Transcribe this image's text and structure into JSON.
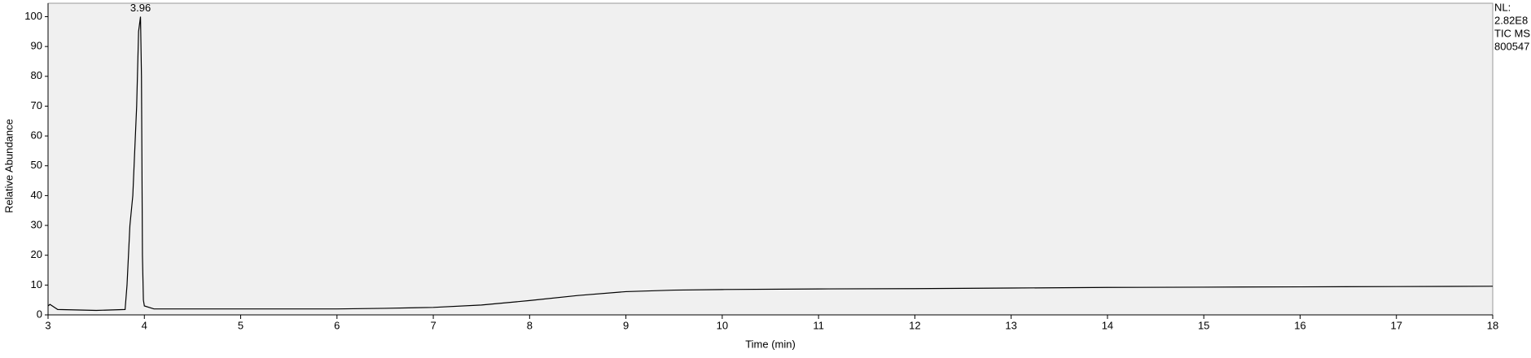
{
  "chart_data": {
    "type": "line",
    "xlabel": "Time (min)",
    "ylabel": "Relative Abundance",
    "info": [
      "NL:",
      "2.82E8",
      "TIC  MS",
      "800547"
    ],
    "annotations": [
      {
        "x": 3.96,
        "y": 100,
        "text": "3.96"
      }
    ],
    "xlim": [
      3,
      18
    ],
    "xticks": [
      3,
      4,
      5,
      6,
      7,
      8,
      9,
      10,
      11,
      12,
      13,
      14,
      15,
      16,
      17,
      18
    ],
    "ylim": [
      0,
      100
    ],
    "yticks": [
      0,
      10,
      20,
      30,
      40,
      50,
      60,
      70,
      80,
      90,
      100
    ],
    "background": "#f0f0f0",
    "series": [
      {
        "color": "#000000",
        "x": [
          3.0,
          3.02,
          3.1,
          3.5,
          3.8,
          3.82,
          3.85,
          3.88,
          3.92,
          3.94,
          3.96,
          3.97,
          3.98,
          3.99,
          4.0,
          4.1,
          5,
          6,
          6.5,
          7,
          7.5,
          8,
          8.5,
          9,
          9.5,
          10,
          11,
          12,
          13,
          14,
          15,
          16,
          17,
          18
        ],
        "values": [
          3,
          3.5,
          1.8,
          1.5,
          1.8,
          10,
          30,
          40,
          70,
          95,
          100,
          80,
          20,
          5,
          3,
          2,
          2,
          2,
          2.2,
          2.5,
          3.3,
          4.8,
          6.5,
          7.8,
          8.3,
          8.5,
          8.7,
          8.8,
          9,
          9.2,
          9.3,
          9.4,
          9.5,
          9.6
        ]
      }
    ]
  }
}
